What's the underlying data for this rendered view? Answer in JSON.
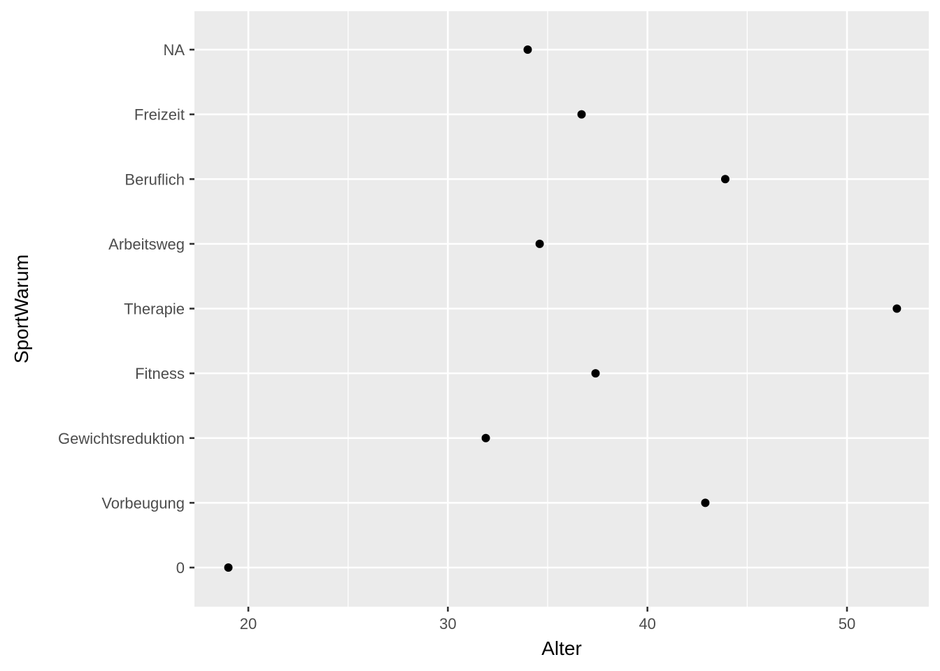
{
  "chart_data": {
    "type": "scatter",
    "title": "",
    "xlabel": "Alter",
    "ylabel": "SportWarum",
    "xlim": [
      17.3,
      54.1
    ],
    "x_ticks": [
      20,
      30,
      40,
      50
    ],
    "x_minor_ticks": [
      25,
      35,
      45
    ],
    "categories": [
      "0",
      "Vorbeugung",
      "Gewichtsreduktion",
      "Fitness",
      "Therapie",
      "Arbeitsweg",
      "Beruflich",
      "Freizeit",
      "NA"
    ],
    "points": [
      {
        "category": "0",
        "x": 19.0
      },
      {
        "category": "Vorbeugung",
        "x": 42.9
      },
      {
        "category": "Gewichtsreduktion",
        "x": 31.9
      },
      {
        "category": "Fitness",
        "x": 37.4
      },
      {
        "category": "Therapie",
        "x": 52.5
      },
      {
        "category": "Arbeitsweg",
        "x": 34.6
      },
      {
        "category": "Beruflich",
        "x": 43.9
      },
      {
        "category": "Freizeit",
        "x": 36.7
      },
      {
        "category": "NA",
        "x": 34.0
      }
    ],
    "grid": true,
    "legend": "none",
    "colors": {
      "panel": "#ebebeb",
      "grid": "#ffffff",
      "point": "#000000",
      "tick_label": "#4d4d4d"
    }
  }
}
